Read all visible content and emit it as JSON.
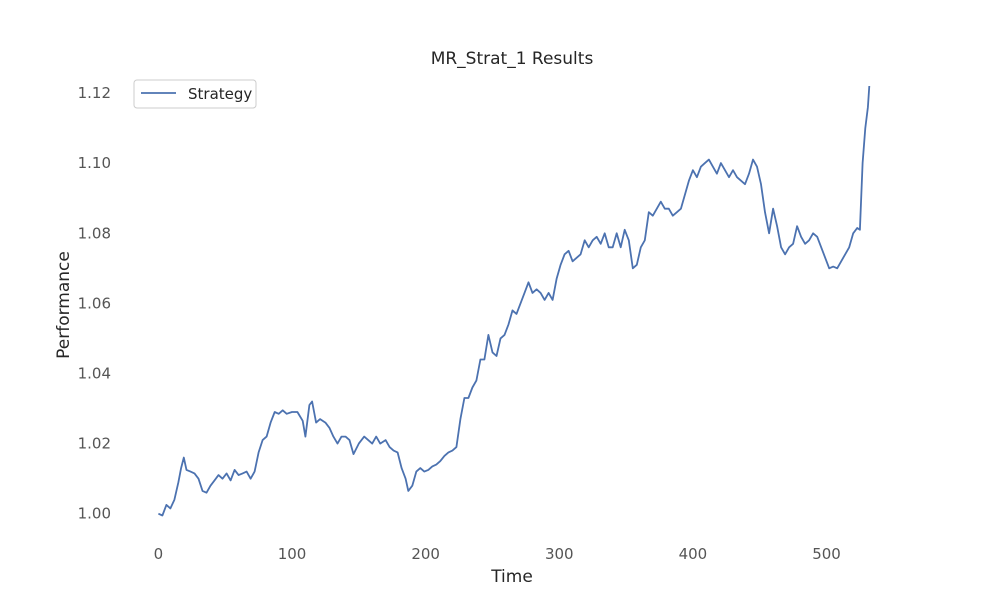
{
  "chart_data": {
    "type": "line",
    "title": "MR_Strat_1 Results",
    "xlabel": "Time",
    "ylabel": "Performance",
    "xlim": [
      -25,
      555
    ],
    "ylim": [
      0.9925,
      1.126
    ],
    "xticks": [
      0,
      100,
      200,
      300,
      400,
      500
    ],
    "xtick_labels": [
      "0",
      "100",
      "200",
      "300",
      "400",
      "500"
    ],
    "yticks": [
      1.0,
      1.02,
      1.04,
      1.06,
      1.08,
      1.1,
      1.12
    ],
    "ytick_labels": [
      "1.00",
      "1.02",
      "1.04",
      "1.06",
      "1.08",
      "1.10",
      "1.12"
    ],
    "grid": false,
    "legend_position": "top-left",
    "series": [
      {
        "name": "Strategy",
        "color": "#4c72b0",
        "points": [
          [
            0,
            1.0
          ],
          [
            3,
            0.9995
          ],
          [
            6,
            1.0025
          ],
          [
            9,
            1.0015
          ],
          [
            12,
            1.004
          ],
          [
            15,
            1.009
          ],
          [
            17,
            1.013
          ],
          [
            19,
            1.016
          ],
          [
            21,
            1.0125
          ],
          [
            24,
            1.012
          ],
          [
            27,
            1.0115
          ],
          [
            30,
            1.01
          ],
          [
            33,
            1.0065
          ],
          [
            36,
            1.006
          ],
          [
            39,
            1.008
          ],
          [
            42,
            1.0095
          ],
          [
            45,
            1.011
          ],
          [
            48,
            1.01
          ],
          [
            51,
            1.0115
          ],
          [
            54,
            1.0095
          ],
          [
            57,
            1.0125
          ],
          [
            60,
            1.011
          ],
          [
            63,
            1.0115
          ],
          [
            66,
            1.012
          ],
          [
            69,
            1.01
          ],
          [
            72,
            1.012
          ],
          [
            75,
            1.0175
          ],
          [
            78,
            1.021
          ],
          [
            81,
            1.022
          ],
          [
            84,
            1.026
          ],
          [
            87,
            1.029
          ],
          [
            90,
            1.0285
          ],
          [
            93,
            1.0295
          ],
          [
            96,
            1.0285
          ],
          [
            100,
            1.029
          ],
          [
            104,
            1.029
          ],
          [
            108,
            1.0265
          ],
          [
            110,
            1.022
          ],
          [
            113,
            1.031
          ],
          [
            115,
            1.032
          ],
          [
            118,
            1.026
          ],
          [
            121,
            1.027
          ],
          [
            125,
            1.026
          ],
          [
            128,
            1.0245
          ],
          [
            131,
            1.022
          ],
          [
            134,
            1.02
          ],
          [
            137,
            1.022
          ],
          [
            140,
            1.022
          ],
          [
            143,
            1.021
          ],
          [
            146,
            1.017
          ],
          [
            150,
            1.02
          ],
          [
            154,
            1.022
          ],
          [
            157,
            1.021
          ],
          [
            160,
            1.02
          ],
          [
            163,
            1.022
          ],
          [
            166,
            1.02
          ],
          [
            170,
            1.021
          ],
          [
            173,
            1.019
          ],
          [
            176,
            1.018
          ],
          [
            179,
            1.0175
          ],
          [
            182,
            1.013
          ],
          [
            185,
            1.01
          ],
          [
            187,
            1.0065
          ],
          [
            190,
            1.008
          ],
          [
            193,
            1.012
          ],
          [
            196,
            1.013
          ],
          [
            199,
            1.012
          ],
          [
            202,
            1.0125
          ],
          [
            205,
            1.0135
          ],
          [
            208,
            1.014
          ],
          [
            211,
            1.015
          ],
          [
            214,
            1.0165
          ],
          [
            217,
            1.0175
          ],
          [
            220,
            1.018
          ],
          [
            223,
            1.019
          ],
          [
            226,
            1.027
          ],
          [
            229,
            1.033
          ],
          [
            232,
            1.033
          ],
          [
            235,
            1.036
          ],
          [
            238,
            1.038
          ],
          [
            241,
            1.044
          ],
          [
            244,
            1.044
          ],
          [
            247,
            1.051
          ],
          [
            250,
            1.046
          ],
          [
            253,
            1.045
          ],
          [
            256,
            1.05
          ],
          [
            259,
            1.051
          ],
          [
            262,
            1.054
          ],
          [
            265,
            1.058
          ],
          [
            268,
            1.057
          ],
          [
            271,
            1.06
          ],
          [
            274,
            1.063
          ],
          [
            277,
            1.066
          ],
          [
            280,
            1.063
          ],
          [
            283,
            1.064
          ],
          [
            286,
            1.063
          ],
          [
            289,
            1.061
          ],
          [
            292,
            1.063
          ],
          [
            295,
            1.061
          ],
          [
            298,
            1.067
          ],
          [
            301,
            1.071
          ],
          [
            304,
            1.074
          ],
          [
            307,
            1.075
          ],
          [
            310,
            1.072
          ],
          [
            313,
            1.073
          ],
          [
            316,
            1.074
          ],
          [
            319,
            1.078
          ],
          [
            322,
            1.076
          ],
          [
            325,
            1.078
          ],
          [
            328,
            1.079
          ],
          [
            331,
            1.077
          ],
          [
            334,
            1.08
          ],
          [
            337,
            1.076
          ],
          [
            340,
            1.076
          ],
          [
            343,
            1.08
          ],
          [
            346,
            1.076
          ],
          [
            349,
            1.081
          ],
          [
            352,
            1.078
          ],
          [
            355,
            1.07
          ],
          [
            358,
            1.071
          ],
          [
            361,
            1.076
          ],
          [
            364,
            1.078
          ],
          [
            367,
            1.086
          ],
          [
            370,
            1.085
          ],
          [
            373,
            1.087
          ],
          [
            376,
            1.089
          ],
          [
            379,
            1.087
          ],
          [
            382,
            1.087
          ],
          [
            385,
            1.085
          ],
          [
            388,
            1.086
          ],
          [
            391,
            1.087
          ],
          [
            394,
            1.091
          ],
          [
            397,
            1.095
          ],
          [
            400,
            1.098
          ],
          [
            403,
            1.096
          ],
          [
            406,
            1.099
          ],
          [
            409,
            1.1
          ],
          [
            412,
            1.101
          ],
          [
            415,
            1.099
          ],
          [
            418,
            1.097
          ],
          [
            421,
            1.1
          ],
          [
            424,
            1.098
          ],
          [
            427,
            1.096
          ],
          [
            430,
            1.098
          ],
          [
            433,
            1.096
          ],
          [
            436,
            1.095
          ],
          [
            439,
            1.094
          ],
          [
            442,
            1.097
          ],
          [
            445,
            1.101
          ],
          [
            448,
            1.099
          ],
          [
            451,
            1.094
          ],
          [
            454,
            1.086
          ],
          [
            457,
            1.08
          ],
          [
            460,
            1.087
          ],
          [
            463,
            1.082
          ],
          [
            466,
            1.076
          ],
          [
            469,
            1.074
          ],
          [
            472,
            1.076
          ],
          [
            475,
            1.077
          ],
          [
            478,
            1.082
          ],
          [
            481,
            1.079
          ],
          [
            484,
            1.077
          ],
          [
            487,
            1.078
          ],
          [
            490,
            1.08
          ],
          [
            493,
            1.079
          ],
          [
            496,
            1.076
          ],
          [
            499,
            1.073
          ],
          [
            502,
            1.07
          ],
          [
            505,
            1.0705
          ],
          [
            508,
            1.07
          ],
          [
            511,
            1.072
          ],
          [
            514,
            1.074
          ],
          [
            517,
            1.076
          ],
          [
            520,
            1.08
          ],
          [
            523,
            1.0815
          ],
          [
            525,
            1.081
          ],
          [
            527,
            1.1
          ],
          [
            529,
            1.11
          ],
          [
            531,
            1.116
          ],
          [
            532,
            1.122
          ]
        ]
      }
    ]
  }
}
